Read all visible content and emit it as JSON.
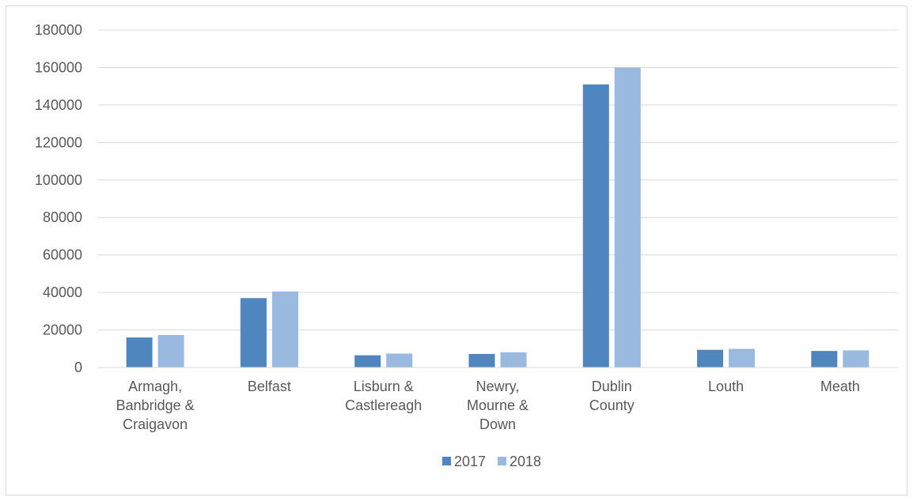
{
  "chart_data": {
    "type": "bar",
    "categories": [
      [
        "Armagh,",
        "Banbridge &",
        "Craigavon"
      ],
      [
        "Belfast"
      ],
      [
        "Lisburn &",
        "Castlereagh"
      ],
      [
        "Newry,",
        "Mourne &",
        "Down"
      ],
      [
        "Dublin",
        "County"
      ],
      [
        "Louth"
      ],
      [
        "Meath"
      ]
    ],
    "series": [
      {
        "name": "2017",
        "color": "#4f86bd",
        "values": [
          16000,
          37000,
          6500,
          7200,
          151000,
          9400,
          8800
        ]
      },
      {
        "name": "2018",
        "color": "#99b9df",
        "values": [
          17300,
          40500,
          7400,
          8100,
          160000,
          9900,
          9100
        ]
      }
    ],
    "ylim": [
      0,
      180000
    ],
    "yticks": [
      "0",
      "20000",
      "40000",
      "60000",
      "80000",
      "100000",
      "120000",
      "140000",
      "160000",
      "180000"
    ],
    "grid": true,
    "legend_position": "bottom"
  }
}
